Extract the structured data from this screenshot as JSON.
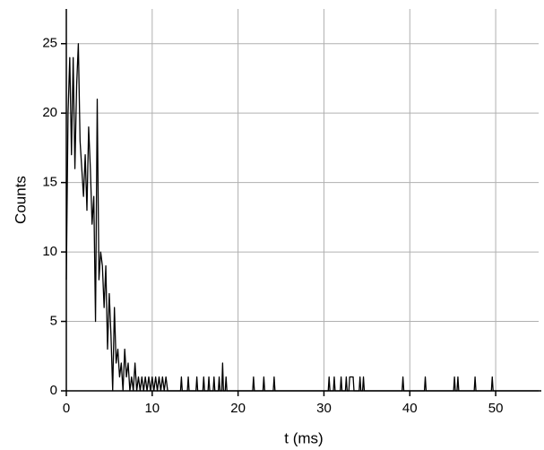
{
  "chart_data": {
    "type": "line",
    "x_label": "t (ms)",
    "y_label": "Counts",
    "x": [
      0,
      0.2,
      0.4,
      0.6,
      0.8,
      1.0,
      1.2,
      1.4,
      1.6,
      1.8,
      2.0,
      2.2,
      2.4,
      2.6,
      2.8,
      3.0,
      3.2,
      3.4,
      3.6,
      3.8,
      4.0,
      4.2,
      4.4,
      4.6,
      4.8,
      5.0,
      5.2,
      5.4,
      5.6,
      5.8,
      6.0,
      6.2,
      6.4,
      6.6,
      6.8,
      7.0,
      7.2,
      7.4,
      7.6,
      7.8,
      8.0,
      8.2,
      8.4,
      8.6,
      8.8,
      9.0,
      9.2,
      9.4,
      9.6,
      9.8,
      10.0,
      10.2,
      10.4,
      10.6,
      10.8,
      11.0,
      11.2,
      11.4,
      11.6,
      11.8,
      12.0,
      13.3,
      13.4,
      13.5,
      14.1,
      14.2,
      14.3,
      15.1,
      15.2,
      15.3,
      15.9,
      16.0,
      16.1,
      16.5,
      16.6,
      16.7,
      17.1,
      17.2,
      17.3,
      17.7,
      17.8,
      17.9,
      18.1,
      18.2,
      18.3,
      18.5,
      18.6,
      18.7,
      21.7,
      21.8,
      21.9,
      22.9,
      23.0,
      23.1,
      24.1,
      24.2,
      24.3,
      30.5,
      30.6,
      30.7,
      31.1,
      31.2,
      31.3,
      31.9,
      32.0,
      32.1,
      32.5,
      32.6,
      32.7,
      32.9,
      33.0,
      33.4,
      33.5,
      34.1,
      34.2,
      34.3,
      34.5,
      34.6,
      34.7,
      39.1,
      39.2,
      39.3,
      41.7,
      41.8,
      41.9,
      45.1,
      45.2,
      45.3,
      45.5,
      45.6,
      45.7,
      47.5,
      47.6,
      47.7,
      49.5,
      49.6,
      49.7,
      55
    ],
    "values": [
      8,
      20,
      24,
      17,
      24,
      16,
      22,
      25,
      18,
      16,
      14,
      17,
      13,
      19,
      16,
      12,
      14,
      5,
      21,
      8,
      10,
      9,
      6,
      9,
      3,
      7,
      4,
      0,
      6,
      2,
      3,
      1,
      2,
      0,
      3,
      1,
      2,
      0,
      1,
      0,
      2,
      0,
      1,
      0,
      1,
      0,
      1,
      0,
      1,
      0,
      1,
      0,
      1,
      0,
      1,
      0,
      1,
      0,
      1,
      0,
      0,
      0,
      1,
      0,
      0,
      1,
      0,
      0,
      1,
      0,
      0,
      1,
      0,
      0,
      1,
      0,
      0,
      1,
      0,
      0,
      1,
      0,
      0,
      2,
      0,
      0,
      1,
      0,
      0,
      1,
      0,
      0,
      1,
      0,
      0,
      1,
      0,
      0,
      1,
      0,
      0,
      1,
      0,
      0,
      1,
      0,
      0,
      1,
      0,
      0,
      1,
      1,
      0,
      0,
      1,
      0,
      0,
      1,
      0,
      0,
      1,
      0,
      0,
      1,
      0,
      0,
      1,
      0,
      0,
      1,
      0,
      0,
      1,
      0,
      0,
      1,
      0,
      0
    ],
    "color": "#000000",
    "xlim": [
      0,
      55
    ],
    "ylim": [
      0,
      27.5
    ],
    "xticks": [
      0,
      10,
      20,
      30,
      40,
      50
    ],
    "yticks": [
      0,
      5,
      10,
      15,
      20,
      25
    ],
    "grid": true
  }
}
